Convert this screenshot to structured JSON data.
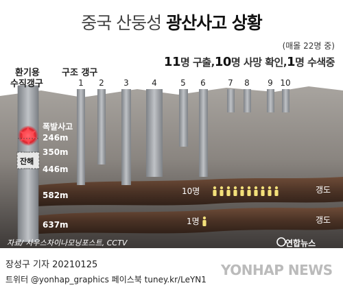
{
  "title": {
    "part1": "중국 산둥성 ",
    "part2": "광산사고 상황"
  },
  "note": "(매몰 22명 중)",
  "summary": {
    "n1": "11",
    "t1": "명 구출,",
    "n2": "10",
    "t2": "명 사망 확인,",
    "n3": "1",
    "t3": "명 수색중"
  },
  "labels": {
    "vent_shaft": [
      "환기용",
      "수직갱구"
    ],
    "rescue_shafts": "구조 갱구",
    "explosion": "폭발사고",
    "blockage": "잔해",
    "tunnel": "갱도"
  },
  "depths": [
    "246m",
    "350m",
    "446m",
    "582m",
    "637m"
  ],
  "rescue_shaft_numbers": [
    "1",
    "2",
    "3",
    "4",
    "5",
    "6",
    "7",
    "8",
    "9",
    "10"
  ],
  "tunnels": [
    {
      "depth": "582m",
      "count": "10명",
      "people": 10
    },
    {
      "depth": "637m",
      "count": "1명",
      "people": 1
    }
  ],
  "source": "자료/ 사우스차이나모닝포스트, CCTV",
  "agency_logo": "연합뉴스",
  "footer": {
    "reporter": "장성구 기자  20210125",
    "social": "트위터 @yonhap_graphics  페이스북 tuney.kr/LeYN1",
    "watermark": "YONHAP NEWS"
  },
  "colors": {
    "ground_light": "#9b9690",
    "ground_dark": "#4a4542",
    "tunnel": "#5b3f2f",
    "shaft": "#9fa3a8",
    "person": "#f3e07a"
  }
}
